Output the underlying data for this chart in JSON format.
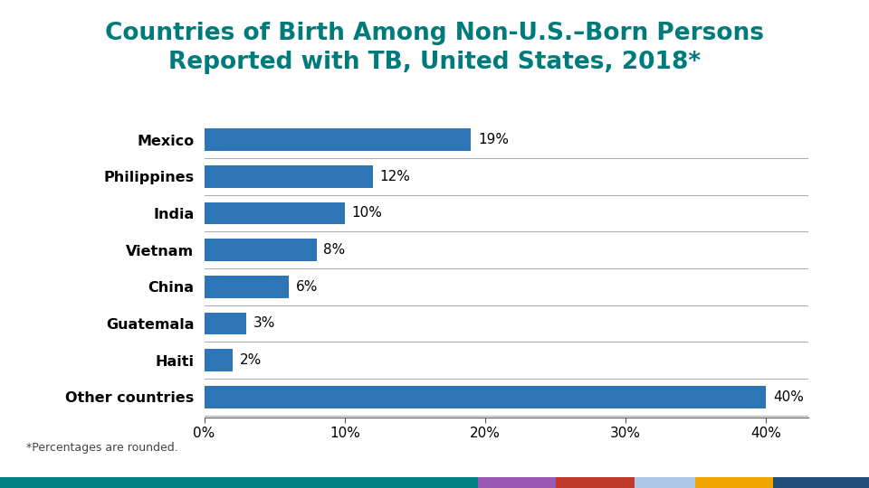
{
  "title": "Countries of Birth Among Non-U.S.–Born Persons\nReported with TB, United States, 2018*",
  "categories": [
    "Mexico",
    "Philippines",
    "India",
    "Vietnam",
    "China",
    "Guatemala",
    "Haiti",
    "Other countries"
  ],
  "values": [
    19,
    12,
    10,
    8,
    6,
    3,
    2,
    40
  ],
  "labels": [
    "19%",
    "12%",
    "10%",
    "8%",
    "6%",
    "3%",
    "2%",
    "40%"
  ],
  "bar_color": "#2E75B6",
  "title_color": "#007B7B",
  "label_color": "#000000",
  "footnote": "*Percentages are rounded.",
  "xlim": [
    0,
    43
  ],
  "xticks": [
    0,
    10,
    20,
    30,
    40
  ],
  "xticklabels": [
    "0%",
    "10%",
    "20%",
    "30%",
    "40%"
  ],
  "background_color": "#ffffff",
  "bottom_bar_colors": [
    "#008080",
    "#9B59B6",
    "#C0392B",
    "#AEC6E8",
    "#F0A500",
    "#1F4E79"
  ],
  "bottom_bar_widths": [
    0.55,
    0.09,
    0.09,
    0.07,
    0.09,
    0.11
  ]
}
